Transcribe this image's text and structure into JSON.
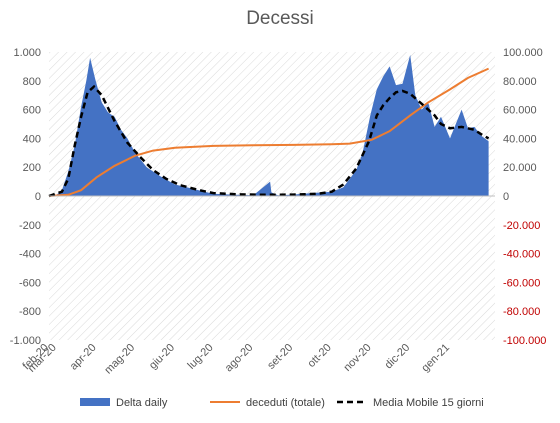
{
  "chart_data": {
    "type": "area",
    "title": "Decessi",
    "x_tick_labels": [
      "feb-20",
      "mar-20",
      "apr-20",
      "mag-20",
      "giu-20",
      "lug-20",
      "ago-20",
      "set-20",
      "ott-20",
      "nov-20",
      "dic-20",
      "gen-21"
    ],
    "y_left": {
      "ylim": [
        -1000,
        1000
      ],
      "ticks": [
        "1.000",
        "800",
        "600",
        "400",
        "200",
        "0",
        "-200",
        "-400",
        "-600",
        "-800",
        "-1.000"
      ]
    },
    "y_right": {
      "ylim": [
        -100000,
        100000
      ],
      "ticks": [
        "100.000",
        "80.000",
        "60.000",
        "40.000",
        "20.000",
        "0",
        "-20.000",
        "-40.000",
        "-60.000",
        "-80.000",
        "-100.000"
      ]
    },
    "grid": false,
    "legend_position": "bottom",
    "series": [
      {
        "name": "Delta daily",
        "axis": "left",
        "kind": "area",
        "color": "#4472c4",
        "x": [
          "2020-02-24",
          "2020-03-01",
          "2020-03-05",
          "2020-03-10",
          "2020-03-15",
          "2020-03-20",
          "2020-03-24",
          "2020-03-27",
          "2020-03-31",
          "2020-04-05",
          "2020-04-10",
          "2020-04-15",
          "2020-04-20",
          "2020-04-25",
          "2020-05-01",
          "2020-05-10",
          "2020-05-20",
          "2020-06-01",
          "2020-06-15",
          "2020-06-24",
          "2020-07-01",
          "2020-07-15",
          "2020-08-01",
          "2020-08-14",
          "2020-08-15",
          "2020-08-20",
          "2020-09-01",
          "2020-09-15",
          "2020-10-01",
          "2020-10-10",
          "2020-10-20",
          "2020-10-25",
          "2020-10-31",
          "2020-11-05",
          "2020-11-10",
          "2020-11-15",
          "2020-11-20",
          "2020-11-25",
          "2020-12-01",
          "2020-12-05",
          "2020-12-10",
          "2020-12-15",
          "2020-12-20",
          "2020-12-25",
          "2021-01-01",
          "2021-01-10",
          "2021-01-15",
          "2021-01-20",
          "2021-01-25",
          "2021-01-31"
        ],
        "values": [
          0,
          10,
          40,
          170,
          350,
          620,
          800,
          960,
          810,
          650,
          580,
          550,
          460,
          400,
          300,
          200,
          140,
          80,
          50,
          30,
          15,
          10,
          5,
          100,
          25,
          5,
          10,
          20,
          30,
          60,
          180,
          300,
          560,
          740,
          830,
          900,
          770,
          780,
          980,
          700,
          600,
          650,
          480,
          550,
          400,
          600,
          470,
          480,
          420,
          380
        ]
      },
      {
        "name": "deceduti (totale)",
        "axis": "right",
        "kind": "line",
        "color": "#ed7d31",
        "x": [
          "2020-02-24",
          "2020-03-10",
          "2020-03-20",
          "2020-04-01",
          "2020-04-15",
          "2020-05-01",
          "2020-05-15",
          "2020-06-01",
          "2020-07-01",
          "2020-08-01",
          "2020-09-01",
          "2020-10-01",
          "2020-10-15",
          "2020-11-01",
          "2020-11-15",
          "2020-12-01",
          "2020-12-15",
          "2021-01-01",
          "2021-01-15",
          "2021-01-31"
        ],
        "values": [
          0,
          800,
          4000,
          13000,
          21000,
          28000,
          31500,
          33500,
          34800,
          35200,
          35500,
          36000,
          36400,
          39000,
          45000,
          56000,
          65000,
          74000,
          82000,
          88500
        ]
      },
      {
        "name": "Media Mobile 15 giorni",
        "axis": "left",
        "kind": "dashed-line",
        "color": "#000000",
        "x": [
          "2020-02-24",
          "2020-03-05",
          "2020-03-10",
          "2020-03-15",
          "2020-03-20",
          "2020-03-25",
          "2020-03-30",
          "2020-04-05",
          "2020-04-15",
          "2020-04-25",
          "2020-05-05",
          "2020-05-15",
          "2020-05-25",
          "2020-06-05",
          "2020-06-20",
          "2020-07-01",
          "2020-07-20",
          "2020-08-10",
          "2020-09-01",
          "2020-09-20",
          "2020-10-01",
          "2020-10-10",
          "2020-10-20",
          "2020-10-30",
          "2020-11-05",
          "2020-11-10",
          "2020-11-15",
          "2020-11-20",
          "2020-11-25",
          "2020-12-01",
          "2020-12-10",
          "2020-12-20",
          "2020-12-25",
          "2021-01-01",
          "2021-01-10",
          "2021-01-20",
          "2021-01-25",
          "2021-01-31"
        ],
        "values": [
          0,
          30,
          120,
          350,
          550,
          720,
          760,
          700,
          520,
          370,
          270,
          180,
          120,
          75,
          40,
          20,
          12,
          8,
          10,
          15,
          30,
          80,
          190,
          380,
          560,
          630,
          680,
          720,
          730,
          710,
          640,
          560,
          500,
          470,
          480,
          460,
          430,
          400
        ]
      }
    ]
  }
}
